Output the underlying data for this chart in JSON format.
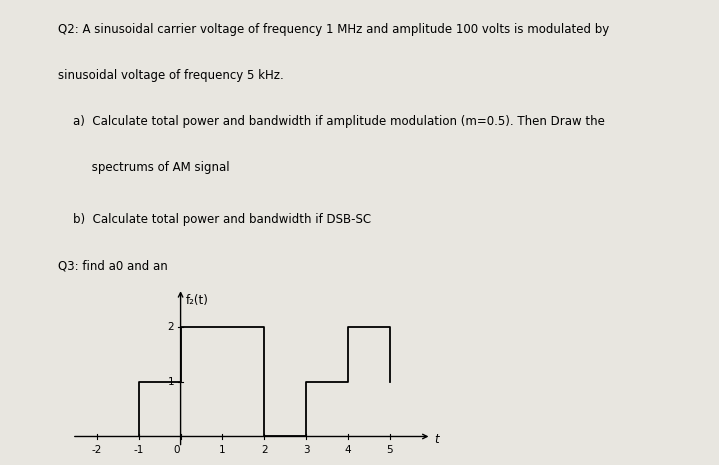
{
  "background_color": "#e8e6e0",
  "lines": [
    "Q2: A sinusoidal carrier voltage of frequency 1 MHz and amplitude 100 volts is modulated by",
    "sinusoidal voltage of frequency 5 kHz.",
    "    a)  Calculate total power and bandwidth if amplitude modulation (m=0.5). Then Draw the",
    "         spectrums of AM signal",
    "    b)  Calculate total power and bandwidth if DSB-SC"
  ],
  "q3_text": "Q3: find a0 and an",
  "ylabel_text": "f₂(t)",
  "xlabel_text": "t",
  "step_x": [
    -1,
    -1,
    0,
    0,
    1,
    1,
    2,
    2,
    3,
    3,
    4,
    4,
    5,
    5
  ],
  "step_y": [
    0,
    1,
    1,
    2,
    2,
    2,
    2,
    0,
    0,
    1,
    1,
    2,
    2,
    1
  ],
  "xlim": [
    -2.6,
    6.0
  ],
  "ylim": [
    -0.35,
    2.7
  ],
  "xticks": [
    -2,
    -1,
    0,
    1,
    2,
    3,
    4,
    5
  ],
  "yticks": [
    1,
    2
  ],
  "text_fontsize": 8.5,
  "tick_fontsize": 7.5
}
